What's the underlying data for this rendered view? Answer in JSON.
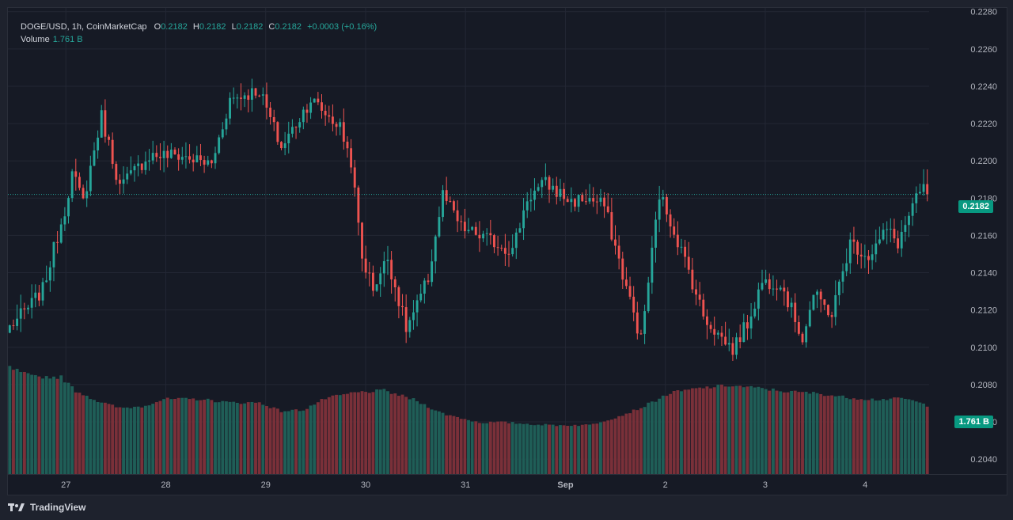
{
  "legend": {
    "symbol": "DOGE/USD, 1h, CoinMarketCap",
    "o_label": "O",
    "o_value": "0.2182",
    "h_label": "H",
    "h_value": "0.2182",
    "l_label": "L",
    "l_value": "0.2182",
    "c_label": "C",
    "c_value": "0.2182",
    "change": "+0.0003 (+0.16%)",
    "volume_label": "Volume",
    "volume_value": "1.761 B"
  },
  "last_price_label": "0.2182",
  "volume_badge_label": "1.761 B",
  "footer": {
    "brand": "TradingView"
  },
  "colors": {
    "up": "#26a69a",
    "down": "#ef5350",
    "background": "#161a25",
    "grid": "#232734",
    "text": "#b2b5be",
    "badge": "#089981"
  },
  "icons": {
    "logo": "tradingview-logo-icon"
  },
  "chart_data": {
    "type": "candlestick",
    "symbol": "DOGE/USD",
    "interval": "1h",
    "source": "CoinMarketCap",
    "grid": true,
    "price_axis": {
      "range": [
        0.2032,
        0.2282
      ],
      "ticks": [
        "0.2280",
        "0.2260",
        "0.2240",
        "0.2220",
        "0.2200",
        "0.2180",
        "0.2160",
        "0.2140",
        "0.2120",
        "0.2100",
        "0.2080",
        "0.2060",
        "0.2040"
      ]
    },
    "last_price": 0.2182,
    "time_axis": {
      "range": [
        -0.3,
        8.92
      ],
      "ticks": [
        {
          "label": "27",
          "day": 0.28
        },
        {
          "label": "28",
          "day": 1.28
        },
        {
          "label": "29",
          "day": 2.28
        },
        {
          "label": "30",
          "day": 3.28
        },
        {
          "label": "31",
          "day": 4.28
        },
        {
          "label": "Sep",
          "day": 5.28
        },
        {
          "label": "2",
          "day": 6.28
        },
        {
          "label": "3",
          "day": 7.28
        },
        {
          "label": "4",
          "day": 8.28
        }
      ]
    },
    "price_keyframes": [
      [
        0,
        0.2111
      ],
      [
        5,
        0.2121
      ],
      [
        9,
        0.2131
      ],
      [
        15,
        0.2174
      ],
      [
        17,
        0.2193
      ],
      [
        20,
        0.2178
      ],
      [
        25,
        0.2224
      ],
      [
        30,
        0.2186
      ],
      [
        38,
        0.2203
      ],
      [
        46,
        0.2203
      ],
      [
        55,
        0.2198
      ],
      [
        60,
        0.2233
      ],
      [
        68,
        0.2238
      ],
      [
        74,
        0.2207
      ],
      [
        82,
        0.2233
      ],
      [
        90,
        0.2218
      ],
      [
        93,
        0.22
      ],
      [
        96,
        0.2148
      ],
      [
        99,
        0.2132
      ],
      [
        103,
        0.2148
      ],
      [
        108,
        0.211
      ],
      [
        111,
        0.2122
      ],
      [
        114,
        0.2137
      ],
      [
        118,
        0.2182
      ],
      [
        123,
        0.2164
      ],
      [
        130,
        0.2158
      ],
      [
        137,
        0.2152
      ],
      [
        141,
        0.218
      ],
      [
        146,
        0.2188
      ],
      [
        153,
        0.2178
      ],
      [
        157,
        0.218
      ],
      [
        162,
        0.2176
      ],
      [
        167,
        0.2139
      ],
      [
        172,
        0.2104
      ],
      [
        177,
        0.2182
      ],
      [
        180,
        0.2168
      ],
      [
        185,
        0.2141
      ],
      [
        189,
        0.2117
      ],
      [
        193,
        0.2107
      ],
      [
        197,
        0.2099
      ],
      [
        201,
        0.2113
      ],
      [
        205,
        0.2135
      ],
      [
        210,
        0.2135
      ],
      [
        216,
        0.2105
      ],
      [
        219,
        0.2128
      ],
      [
        224,
        0.2118
      ],
      [
        229,
        0.2156
      ],
      [
        234,
        0.2149
      ],
      [
        239,
        0.2163
      ],
      [
        242,
        0.2156
      ],
      [
        246,
        0.2175
      ],
      [
        249,
        0.2186
      ],
      [
        250,
        0.2182
      ]
    ],
    "price_noise": 0.0008,
    "volume_axis": {
      "range": [
        0,
        3.5
      ],
      "unit": "B"
    },
    "volume_keyframes": [
      [
        0,
        3.1
      ],
      [
        6,
        2.84
      ],
      [
        14,
        2.82
      ],
      [
        18,
        2.42
      ],
      [
        20,
        2.33
      ],
      [
        24,
        2.12
      ],
      [
        30,
        1.92
      ],
      [
        36,
        1.97
      ],
      [
        42,
        2.18
      ],
      [
        52,
        2.18
      ],
      [
        60,
        2.08
      ],
      [
        68,
        2.08
      ],
      [
        74,
        1.83
      ],
      [
        80,
        1.87
      ],
      [
        86,
        2.2
      ],
      [
        94,
        2.37
      ],
      [
        102,
        2.43
      ],
      [
        110,
        2.17
      ],
      [
        118,
        1.76
      ],
      [
        128,
        1.5
      ],
      [
        134,
        1.51
      ],
      [
        144,
        1.44
      ],
      [
        150,
        1.42
      ],
      [
        158,
        1.43
      ],
      [
        166,
        1.68
      ],
      [
        172,
        1.93
      ],
      [
        180,
        2.36
      ],
      [
        188,
        2.5
      ],
      [
        196,
        2.58
      ],
      [
        204,
        2.5
      ],
      [
        212,
        2.4
      ],
      [
        220,
        2.35
      ],
      [
        228,
        2.23
      ],
      [
        236,
        2.17
      ],
      [
        244,
        2.2
      ],
      [
        250,
        2.0
      ]
    ],
    "bar_count": 251,
    "last_volume": 1.761
  }
}
